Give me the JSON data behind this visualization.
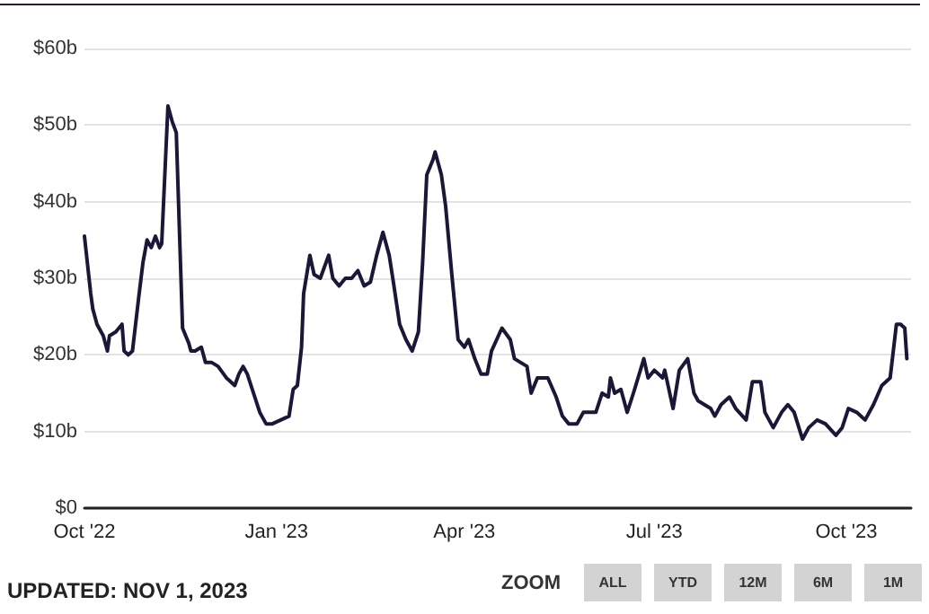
{
  "chart_data": {
    "type": "line",
    "color": "#1a1838",
    "grid": "y",
    "marker": "none",
    "line_style": "solid",
    "xlim": [
      "2022-10-01",
      "2023-11-01"
    ],
    "xticks": [
      {
        "value": "2022-10-01",
        "label": "Oct '22"
      },
      {
        "value": "2023-01-01",
        "label": "Jan '23"
      },
      {
        "value": "2023-04-01",
        "label": "Apr '23"
      },
      {
        "value": "2023-07-01",
        "label": "Jul '23"
      },
      {
        "value": "2023-10-01",
        "label": "Oct '23"
      }
    ],
    "ylim": [
      0,
      60
    ],
    "yticks": [
      {
        "value": 0,
        "label": "$0"
      },
      {
        "value": 10,
        "label": "$10b"
      },
      {
        "value": 20,
        "label": "$20b"
      },
      {
        "value": 30,
        "label": "$30b"
      },
      {
        "value": 40,
        "label": "$40b"
      },
      {
        "value": 50,
        "label": "$50b"
      },
      {
        "value": 60,
        "label": "$60b"
      }
    ],
    "x": [
      "2022-10-01",
      "2022-10-02",
      "2022-10-04",
      "2022-10-05",
      "2022-10-07",
      "2022-10-10",
      "2022-10-12",
      "2022-10-13",
      "2022-10-16",
      "2022-10-19",
      "2022-10-20",
      "2022-10-22",
      "2022-10-24",
      "2022-10-27",
      "2022-10-29",
      "2022-10-31",
      "2022-11-02",
      "2022-11-04",
      "2022-11-06",
      "2022-11-07",
      "2022-11-10",
      "2022-11-12",
      "2022-11-14",
      "2022-11-17",
      "2022-11-20",
      "2022-11-21",
      "2022-11-23",
      "2022-11-26",
      "2022-11-28",
      "2022-12-01",
      "2022-12-04",
      "2022-12-08",
      "2022-12-12",
      "2022-12-14",
      "2022-12-16",
      "2022-12-18",
      "2022-12-21",
      "2022-12-24",
      "2022-12-27",
      "2022-12-30",
      "2023-01-03",
      "2023-01-07",
      "2023-01-09",
      "2023-01-11",
      "2023-01-13",
      "2023-01-14",
      "2023-01-17",
      "2023-01-19",
      "2023-01-22",
      "2023-01-26",
      "2023-01-28",
      "2023-01-31",
      "2023-02-03",
      "2023-02-06",
      "2023-02-09",
      "2023-02-12",
      "2023-02-15",
      "2023-02-18",
      "2023-02-21",
      "2023-02-24",
      "2023-02-26",
      "2023-03-01",
      "2023-03-04",
      "2023-03-07",
      "2023-03-10",
      "2023-03-12",
      "2023-03-14",
      "2023-03-17",
      "2023-03-18",
      "2023-03-21",
      "2023-03-23",
      "2023-03-26",
      "2023-03-29",
      "2023-04-01",
      "2023-04-03",
      "2023-04-06",
      "2023-04-09",
      "2023-04-12",
      "2023-04-14",
      "2023-04-19",
      "2023-04-23",
      "2023-04-25",
      "2023-04-28",
      "2023-05-01",
      "2023-05-03",
      "2023-05-06",
      "2023-05-08",
      "2023-05-11",
      "2023-05-15",
      "2023-05-18",
      "2023-05-21",
      "2023-05-25",
      "2023-05-28",
      "2023-06-03",
      "2023-06-06",
      "2023-06-09",
      "2023-06-10",
      "2023-06-12",
      "2023-06-15",
      "2023-06-18",
      "2023-06-21",
      "2023-06-26",
      "2023-06-28",
      "2023-07-01",
      "2023-07-05",
      "2023-07-06",
      "2023-07-10",
      "2023-07-13",
      "2023-07-17",
      "2023-07-20",
      "2023-07-22",
      "2023-07-28",
      "2023-07-30",
      "2023-08-02",
      "2023-08-06",
      "2023-08-09",
      "2023-08-14",
      "2023-08-17",
      "2023-08-21",
      "2023-08-23",
      "2023-08-27",
      "2023-08-31",
      "2023-09-03",
      "2023-09-06",
      "2023-09-10",
      "2023-09-13",
      "2023-09-17",
      "2023-09-21",
      "2023-09-26",
      "2023-09-29",
      "2023-10-02",
      "2023-10-06",
      "2023-10-10",
      "2023-10-14",
      "2023-10-18",
      "2023-10-22",
      "2023-10-25",
      "2023-10-27",
      "2023-10-29",
      "2023-10-30"
    ],
    "values": [
      35.5,
      33,
      28,
      26,
      24,
      22.5,
      20.5,
      22.5,
      23,
      24,
      20.5,
      20,
      20.5,
      27.5,
      32,
      35,
      34,
      35.5,
      34,
      34.5,
      52.5,
      50.5,
      49,
      23.5,
      21.5,
      20.5,
      20.5,
      21,
      19,
      19,
      18.5,
      17,
      16,
      17.5,
      18.5,
      17.5,
      15,
      12.5,
      11,
      11,
      11.5,
      12,
      15.5,
      16,
      21,
      28,
      33,
      30.5,
      30,
      33,
      30,
      29,
      30,
      30,
      31,
      29,
      29.5,
      33,
      36,
      33,
      29.5,
      24,
      22,
      20.5,
      23,
      32,
      43.5,
      45.5,
      46.5,
      43.5,
      39.5,
      30.5,
      22,
      21,
      22,
      19.5,
      17.5,
      17.5,
      20.5,
      23.5,
      22,
      19.5,
      19,
      18.5,
      15,
      17,
      17,
      17,
      14.5,
      12,
      11,
      11,
      12.5,
      12.5,
      15,
      14.5,
      17,
      15,
      15.5,
      12.5,
      15,
      19.5,
      17,
      18,
      17,
      18,
      13,
      18,
      19.5,
      15,
      14,
      13,
      12,
      13.5,
      14.5,
      13,
      11.5,
      16.5,
      16.5,
      12.5,
      10.5,
      12.5,
      13.5,
      12.5,
      9,
      10.5,
      11.5,
      11,
      9.5,
      10.5,
      13,
      12.5,
      11.5,
      13.5,
      16,
      17,
      24,
      24,
      23.5,
      19.5
    ],
    "annotations": [
      "UPDATED: NOV 1, 2023",
      "ZOOM",
      "ALL",
      "YTD",
      "12M",
      "6M",
      "1M"
    ]
  }
}
